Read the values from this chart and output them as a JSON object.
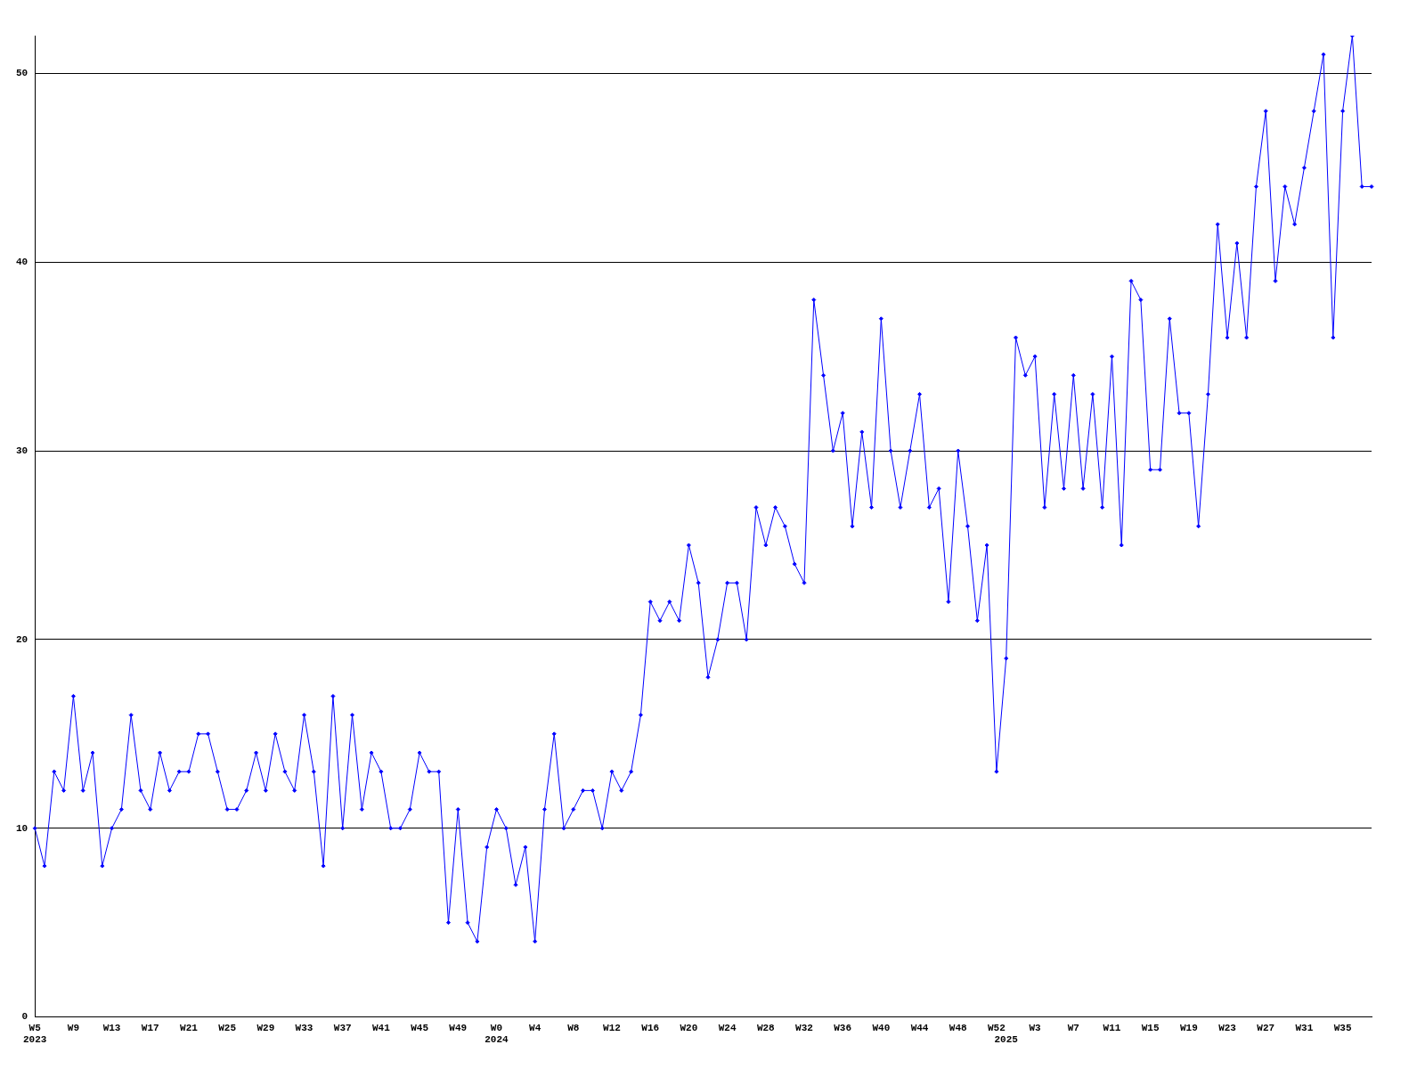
{
  "chart_data": {
    "type": "line",
    "categories": [
      "W5\n2023",
      null,
      null,
      null,
      "W9",
      null,
      null,
      null,
      "W13",
      null,
      null,
      null,
      "W17",
      null,
      null,
      null,
      "W21",
      null,
      null,
      null,
      "W25",
      null,
      null,
      null,
      "W29",
      null,
      null,
      null,
      "W33",
      null,
      null,
      null,
      "W37",
      null,
      null,
      null,
      "W41",
      null,
      null,
      null,
      "W45",
      null,
      null,
      null,
      "W49",
      null,
      null,
      null,
      "W0\n2024",
      null,
      null,
      null,
      "W4",
      null,
      null,
      null,
      "W8",
      null,
      null,
      null,
      "W12",
      null,
      null,
      null,
      "W16",
      null,
      null,
      null,
      "W20",
      null,
      null,
      null,
      "W24",
      null,
      null,
      null,
      "W28",
      null,
      null,
      null,
      "W32",
      null,
      null,
      null,
      "W36",
      null,
      null,
      null,
      "W40",
      null,
      null,
      null,
      "W44",
      null,
      null,
      null,
      "W48",
      null,
      null,
      null,
      "W52",
      "\n2025",
      null,
      null,
      "W3",
      null,
      null,
      null,
      "W7",
      null,
      null,
      null,
      "W11",
      null,
      null,
      null,
      "W15",
      null,
      null,
      null,
      "W19",
      null,
      null,
      null,
      "W23",
      null,
      null,
      null,
      "W27",
      null,
      null,
      null,
      "W31",
      null,
      null,
      null,
      "W35",
      null,
      null,
      null
    ],
    "values": [
      10,
      8,
      13,
      12,
      17,
      12,
      14,
      8,
      10,
      11,
      16,
      12,
      11,
      14,
      12,
      13,
      13,
      15,
      15,
      13,
      11,
      11,
      12,
      14,
      12,
      15,
      13,
      12,
      16,
      13,
      8,
      17,
      10,
      16,
      11,
      14,
      13,
      10,
      10,
      11,
      14,
      13,
      13,
      5,
      11,
      5,
      4,
      9,
      11,
      10,
      7,
      9,
      4,
      11,
      15,
      10,
      11,
      12,
      12,
      10,
      13,
      12,
      13,
      16,
      22,
      21,
      22,
      21,
      25,
      23,
      18,
      20,
      23,
      23,
      20,
      27,
      25,
      27,
      26,
      24,
      23,
      38,
      34,
      30,
      32,
      26,
      31,
      27,
      37,
      30,
      27,
      30,
      33,
      27,
      28,
      22,
      30,
      26,
      21,
      25,
      13,
      19,
      36,
      34,
      35,
      27,
      33,
      28,
      34,
      28,
      33,
      27,
      35,
      25,
      39,
      38,
      29,
      29,
      37,
      32,
      32,
      26,
      33,
      42,
      36,
      41,
      36,
      44,
      48,
      39,
      44,
      42,
      45,
      48,
      51,
      36,
      48,
      52,
      44,
      44
    ],
    "color": "#0000ff",
    "ylim": [
      0,
      52
    ],
    "yticks": [
      0,
      10,
      20,
      30,
      40,
      50
    ],
    "grid": "y",
    "marker": "diamond"
  }
}
